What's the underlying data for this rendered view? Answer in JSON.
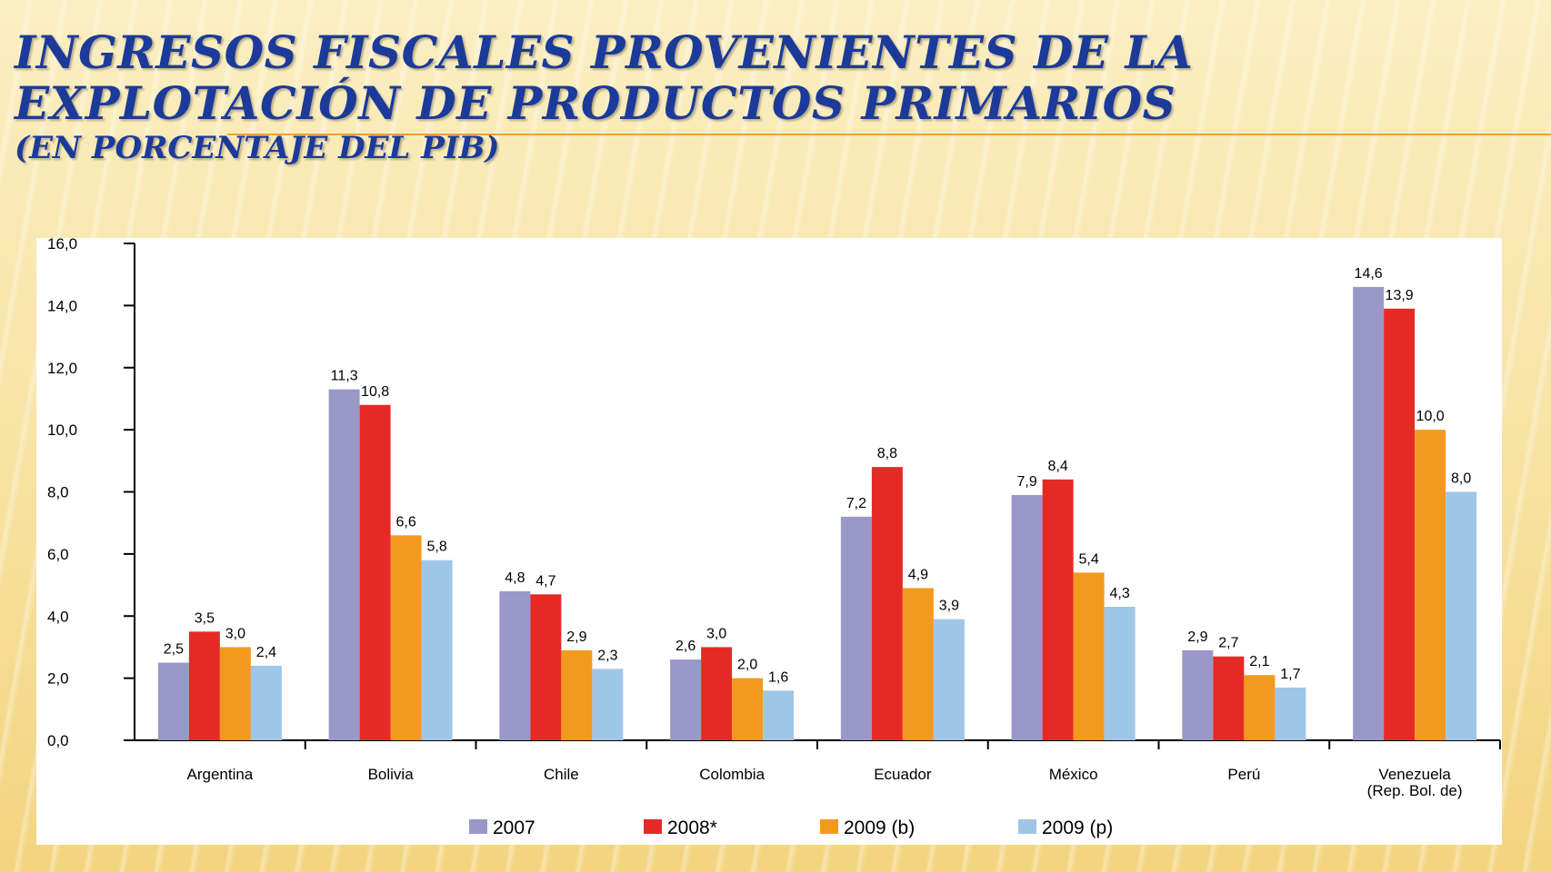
{
  "slide": {
    "title_line1": "INGRESOS FISCALES PROVENIENTES DE LA",
    "title_line2": "EXPLOTACIÓN DE PRODUCTOS PRIMARIOS",
    "title_line3": "(EN PORCENTAJE DEL PIB)"
  },
  "chart_data": {
    "type": "bar",
    "title": "INGRESOS FISCALES PROVENIENTES DE LA EXPLOTACIÓN DE PRODUCTOS PRIMARIOS",
    "subtitle": "(EN PORCENTAJE DEL PIB)",
    "xlabel": "",
    "ylabel": "",
    "ylim": [
      0,
      16
    ],
    "yticks": [
      "0,0",
      "2,0",
      "4,0",
      "6,0",
      "8,0",
      "10,0",
      "12,0",
      "14,0",
      "16,0"
    ],
    "grid": false,
    "legend_position": "bottom",
    "categories": [
      "Argentina",
      "Bolivia",
      "Chile",
      "Colombia",
      "Ecuador",
      "México",
      "Perú",
      "Venezuela (Rep. Bol. de)"
    ],
    "series": [
      {
        "name": "2007",
        "color": "#9a98c8",
        "values": [
          2.5,
          11.3,
          4.8,
          2.6,
          7.2,
          7.9,
          2.9,
          14.6
        ],
        "labels": [
          "2,5",
          "11,3",
          "4,8",
          "2,6",
          "7,2",
          "7,9",
          "2,9",
          "14,6"
        ]
      },
      {
        "name": "2008*",
        "color": "#e52a25",
        "values": [
          3.5,
          10.8,
          4.7,
          3.0,
          8.8,
          8.4,
          2.7,
          13.9
        ],
        "labels": [
          "3,5",
          "10,8",
          "4,7",
          "3,0",
          "8,8",
          "8,4",
          "2,7",
          "13,9"
        ]
      },
      {
        "name": "2009 (b)",
        "color": "#f39a1e",
        "values": [
          3.0,
          6.6,
          2.9,
          2.0,
          4.9,
          5.4,
          2.1,
          10.0
        ],
        "labels": [
          "3,0",
          "6,6",
          "2,9",
          "2,0",
          "4,9",
          "5,4",
          "2,1",
          "10,0"
        ]
      },
      {
        "name": "2009 (p)",
        "color": "#9fc6e6",
        "values": [
          2.4,
          5.8,
          2.3,
          1.6,
          3.9,
          4.3,
          1.7,
          8.0
        ],
        "labels": [
          "2,4",
          "5,8",
          "2,3",
          "1,6",
          "3,9",
          "4,3",
          "1,7",
          "8,0"
        ]
      }
    ]
  }
}
